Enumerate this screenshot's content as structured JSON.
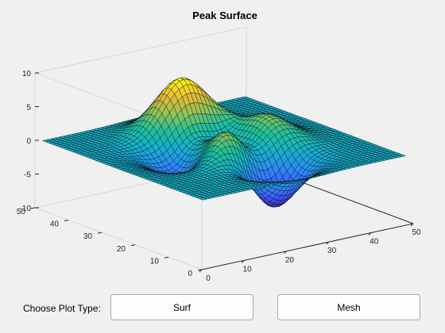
{
  "window": {
    "background": "#f0f0f0"
  },
  "controls": {
    "choose_label": "Choose Plot Type:",
    "surf_button": "Surf",
    "mesh_button": "Mesh"
  },
  "chart_data": {
    "type": "surface",
    "title": "Peak Surface",
    "function": "peaks",
    "grid_size": 49,
    "x_range": [
      0,
      50
    ],
    "y_range": [
      0,
      50
    ],
    "z_range": [
      -10,
      10
    ],
    "x_ticks": [
      "0",
      "10",
      "20",
      "30",
      "40",
      "50"
    ],
    "y_ticks": [
      "0",
      "10",
      "20",
      "30",
      "40",
      "50"
    ],
    "z_ticks": [
      "-10",
      "-5",
      "0",
      "5",
      "10"
    ],
    "colormap": "parula",
    "colormap_stops": [
      "#3e26a8",
      "#4352ef",
      "#2e86fa",
      "#16aed2",
      "#1ec09d",
      "#8ec55a",
      "#e8b738",
      "#f9fb15"
    ],
    "edge_color": "#000000",
    "view": "3d",
    "box": true,
    "grid": false
  }
}
